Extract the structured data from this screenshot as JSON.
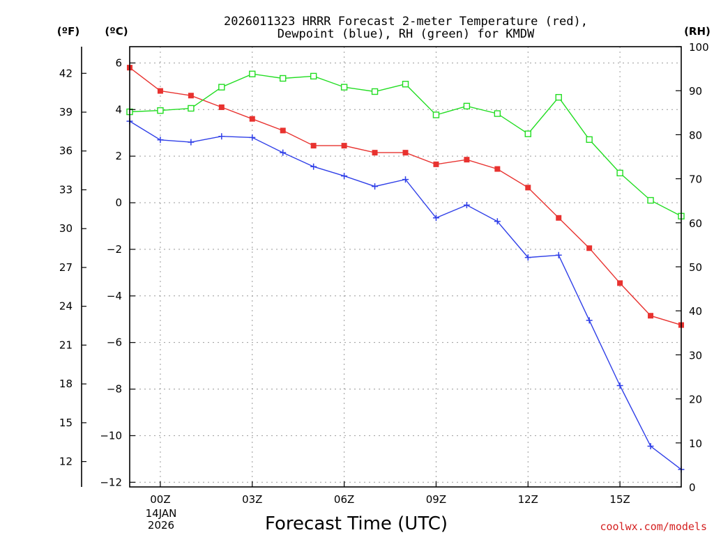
{
  "chart_data": {
    "type": "line",
    "title": "2026011323 HRRR Forecast 2-meter Temperature (red),",
    "subtitle": "Dewpoint (blue), RH (green) for KMDW",
    "xlabel": "Forecast Time (UTC)",
    "credit": "coolwx.com/models",
    "unit_left_f": "(ºF)",
    "unit_left_c": "(ºC)",
    "unit_right": "(RH)",
    "x_ticks": [
      "00Z",
      "03Z",
      "06Z",
      "09Z",
      "12Z",
      "15Z"
    ],
    "x_tick_hours": [
      1,
      4,
      7,
      10,
      13,
      16
    ],
    "date_line1": "14JAN",
    "date_line2": "2026",
    "x_range": [
      0,
      18
    ],
    "c_axis": {
      "ylim": [
        -12.2,
        6.7
      ],
      "ticks": [
        6,
        4,
        2,
        0,
        -2,
        -4,
        -6,
        -8,
        -10,
        -12
      ]
    },
    "f_axis": {
      "ticks": [
        42,
        39,
        36,
        33,
        30,
        27,
        24,
        21,
        18,
        15,
        12
      ]
    },
    "rh_axis": {
      "ylim": [
        0,
        100
      ],
      "ticks": [
        0,
        10,
        20,
        30,
        40,
        50,
        60,
        70,
        80,
        90,
        100
      ]
    },
    "hours": [
      0,
      1,
      2,
      3,
      4,
      5,
      6,
      7,
      8,
      9,
      10,
      11,
      12,
      13,
      14,
      15,
      16,
      17,
      18
    ],
    "series": [
      {
        "name": "Temperature",
        "axis": "c",
        "color": "#e8322f",
        "marker": "filled-square",
        "values": [
          5.8,
          4.8,
          4.6,
          4.1,
          3.6,
          3.1,
          2.45,
          2.45,
          2.15,
          2.15,
          1.65,
          1.85,
          1.45,
          0.65,
          -0.65,
          -1.95,
          -3.45,
          -4.85,
          -5.25
        ]
      },
      {
        "name": "Dewpoint",
        "axis": "c",
        "color": "#2f3fe8",
        "marker": "plus",
        "values": [
          3.5,
          2.7,
          2.6,
          2.85,
          2.8,
          2.15,
          1.55,
          1.15,
          0.7,
          1.0,
          -0.65,
          -0.1,
          -0.8,
          -2.35,
          -2.25,
          -5.05,
          -7.85,
          -10.45,
          -11.45
        ]
      },
      {
        "name": "RH",
        "axis": "rh",
        "color": "#22dd22",
        "marker": "open-square",
        "values": [
          85.2,
          85.5,
          86,
          90.8,
          93.8,
          92.8,
          93.3,
          90.8,
          89.8,
          91.5,
          84.5,
          86.5,
          84.8,
          80.2,
          88.5,
          78.9,
          71.3,
          65.1,
          61.5
        ]
      }
    ]
  }
}
